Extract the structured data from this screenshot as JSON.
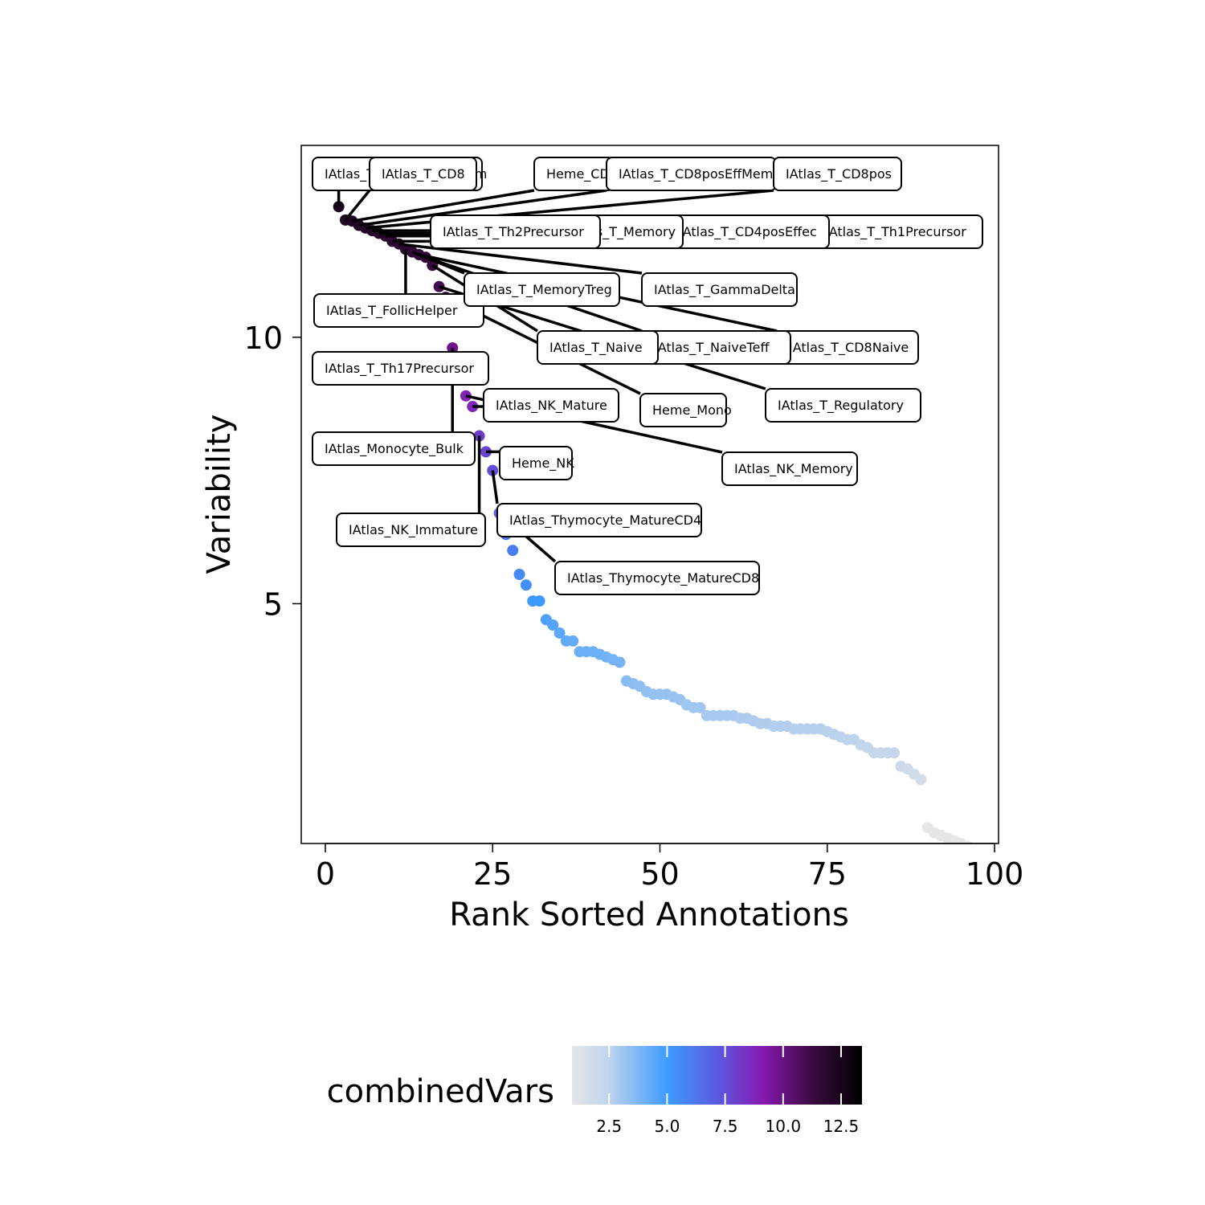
{
  "chart_data": {
    "type": "scatter",
    "xlabel": "Rank Sorted Annotations",
    "ylabel": "Variability",
    "xlim": [
      -3.6,
      100.6
    ],
    "ylim": [
      0.5,
      13.6
    ],
    "x_ticks": [
      0,
      25,
      50,
      75,
      100
    ],
    "y_ticks": [
      5,
      10
    ],
    "grid": false,
    "legend": {
      "title": "combinedVars",
      "position": "bottom",
      "ticks": [
        2.5,
        5.0,
        7.5,
        10.0,
        12.5
      ],
      "tick_labels": [
        "2.5",
        "5.0",
        "7.5",
        "10.0",
        "12.5"
      ],
      "range": [
        0.9,
        13.4
      ],
      "colors": [
        "#e6e6e6",
        "#3e9bff",
        "#8719b0",
        "#000000"
      ]
    },
    "x": [
      1,
      2,
      3,
      4,
      5,
      6,
      7,
      8,
      9,
      10,
      11,
      12,
      13,
      14,
      15,
      16,
      17,
      18,
      19,
      20,
      21,
      22,
      23,
      24,
      25,
      26,
      27,
      28,
      29,
      30,
      31,
      32,
      33,
      34,
      35,
      36,
      37,
      38,
      39,
      40,
      41,
      42,
      43,
      44,
      45,
      46,
      47,
      48,
      49,
      50,
      51,
      52,
      53,
      54,
      55,
      56,
      57,
      58,
      59,
      60,
      61,
      62,
      63,
      64,
      65,
      66,
      67,
      68,
      69,
      70,
      71,
      72,
      73,
      74,
      75,
      76,
      77,
      78,
      79,
      80,
      81,
      82,
      83,
      84,
      85,
      86,
      87,
      88,
      89,
      90,
      91,
      92,
      93,
      94,
      95,
      96
    ],
    "y": [
      12.95,
      12.45,
      12.2,
      12.18,
      12.1,
      12.05,
      12.0,
      11.95,
      11.9,
      11.8,
      11.75,
      11.65,
      11.6,
      11.55,
      11.5,
      11.35,
      10.95,
      10.75,
      9.8,
      9.25,
      8.9,
      8.7,
      8.15,
      7.85,
      7.5,
      6.7,
      6.3,
      6.0,
      5.55,
      5.35,
      5.05,
      5.05,
      4.7,
      4.6,
      4.45,
      4.3,
      4.3,
      4.1,
      4.1,
      4.1,
      4.05,
      4.0,
      3.95,
      3.9,
      3.55,
      3.5,
      3.45,
      3.35,
      3.3,
      3.3,
      3.3,
      3.25,
      3.2,
      3.1,
      3.05,
      3.05,
      2.9,
      2.9,
      2.9,
      2.9,
      2.9,
      2.85,
      2.85,
      2.8,
      2.75,
      2.75,
      2.7,
      2.7,
      2.7,
      2.65,
      2.65,
      2.65,
      2.65,
      2.65,
      2.6,
      2.55,
      2.5,
      2.45,
      2.45,
      2.35,
      2.3,
      2.2,
      2.2,
      2.2,
      2.2,
      1.95,
      1.9,
      1.8,
      1.7,
      0.8,
      0.7,
      0.65,
      0.6,
      0.55,
      0.5,
      0.45
    ],
    "labels": [
      {
        "text": "IAtlas_T_CD8posCenMem",
        "anchor_rank": 2
      },
      {
        "text": "IAtlas_T_CD8",
        "anchor_rank": 3
      },
      {
        "text": "Heme_CD4",
        "anchor_rank": 4
      },
      {
        "text": "IAtlas_T_CD8posEffMem",
        "anchor_rank": 5
      },
      {
        "text": "IAtlas_T_CD8pos",
        "anchor_rank": 6
      },
      {
        "text": "IAtlas_T_Th1Precursor",
        "anchor_rank": 7
      },
      {
        "text": "IAtlas_T_CD4posEffec",
        "anchor_rank": 8
      },
      {
        "text": "IAtlas_T_Memory",
        "anchor_rank": 9
      },
      {
        "text": "IAtlas_T_Th2Precursor",
        "anchor_rank": 10
      },
      {
        "text": "IAtlas_T_GammaDelta",
        "anchor_rank": 11
      },
      {
        "text": "IAtlas_T_FollicHelper",
        "anchor_rank": 12
      },
      {
        "text": "IAtlas_T_MemoryTreg",
        "anchor_rank": 13
      },
      {
        "text": "IAtlas_T_CD8Naive",
        "anchor_rank": 14
      },
      {
        "text": "IAtlas_T_NaiveTeff",
        "anchor_rank": 15
      },
      {
        "text": "IAtlas_T_Naive",
        "anchor_rank": 16
      },
      {
        "text": "IAtlas_T_Regulatory",
        "anchor_rank": 17
      },
      {
        "text": "Heme_Mono",
        "anchor_rank": 18
      },
      {
        "text": "IAtlas_Monocyte_Bulk",
        "anchor_rank": 19
      },
      {
        "text": "IAtlas_T_Th17Precursor",
        "anchor_rank": 20
      },
      {
        "text": "IAtlas_NK_Memory",
        "anchor_rank": 21
      },
      {
        "text": "IAtlas_NK_Mature",
        "anchor_rank": 22
      },
      {
        "text": "IAtlas_NK_Immature",
        "anchor_rank": 23
      },
      {
        "text": "Heme_NK",
        "anchor_rank": 24
      },
      {
        "text": "IAtlas_Thymocyte_MatureCD4",
        "anchor_rank": 25
      },
      {
        "text": "IAtlas_Thymocyte_MatureCD8",
        "anchor_rank": 26
      }
    ]
  }
}
